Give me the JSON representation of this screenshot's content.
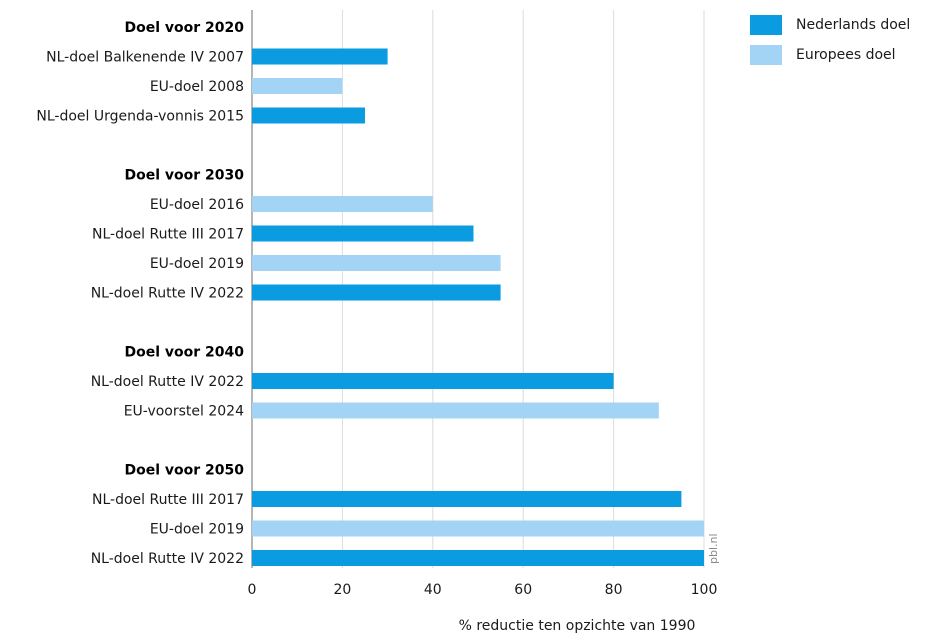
{
  "chart_data": {
    "type": "bar",
    "orientation": "horizontal",
    "xlabel": "% reductie ten opzichte van 1990",
    "xlim": [
      0,
      100
    ],
    "xticks": [
      0,
      20,
      40,
      60,
      80,
      100
    ],
    "grid": "vertical",
    "legend_position": "top-right",
    "series": [
      {
        "name": "Nederlands doel",
        "color": "#0b9be0"
      },
      {
        "name": "Europees doel",
        "color": "#a3d4f5"
      }
    ],
    "groups": [
      {
        "title": "Doel voor 2020",
        "bars": [
          {
            "label": "NL-doel Balkenende IV 2007",
            "value": 30,
            "series": "Nederlands doel"
          },
          {
            "label": "EU-doel 2008",
            "value": 20,
            "series": "Europees doel"
          },
          {
            "label": "NL-doel Urgenda-vonnis 2015",
            "value": 25,
            "series": "Nederlands doel"
          }
        ]
      },
      {
        "title": "Doel voor 2030",
        "bars": [
          {
            "label": "EU-doel 2016",
            "value": 40,
            "series": "Europees doel"
          },
          {
            "label": "NL-doel Rutte III 2017",
            "value": 49,
            "series": "Nederlands doel"
          },
          {
            "label": "EU-doel 2019",
            "value": 55,
            "series": "Europees doel"
          },
          {
            "label": "NL-doel Rutte IV 2022",
            "value": 55,
            "series": "Nederlands doel"
          }
        ]
      },
      {
        "title": "Doel voor 2040",
        "bars": [
          {
            "label": "NL-doel Rutte IV 2022",
            "value": 80,
            "series": "Nederlands doel"
          },
          {
            "label": "EU-voorstel 2024",
            "value": 90,
            "series": "Europees doel"
          }
        ]
      },
      {
        "title": "Doel voor 2050",
        "bars": [
          {
            "label": "NL-doel Rutte III 2017",
            "value": 95,
            "series": "Nederlands doel"
          },
          {
            "label": "EU-doel 2019",
            "value": 100,
            "series": "Europees doel"
          },
          {
            "label": "NL-doel Rutte IV 2022",
            "value": 100,
            "series": "Nederlands doel"
          }
        ]
      }
    ],
    "source": "pbl.nl"
  }
}
